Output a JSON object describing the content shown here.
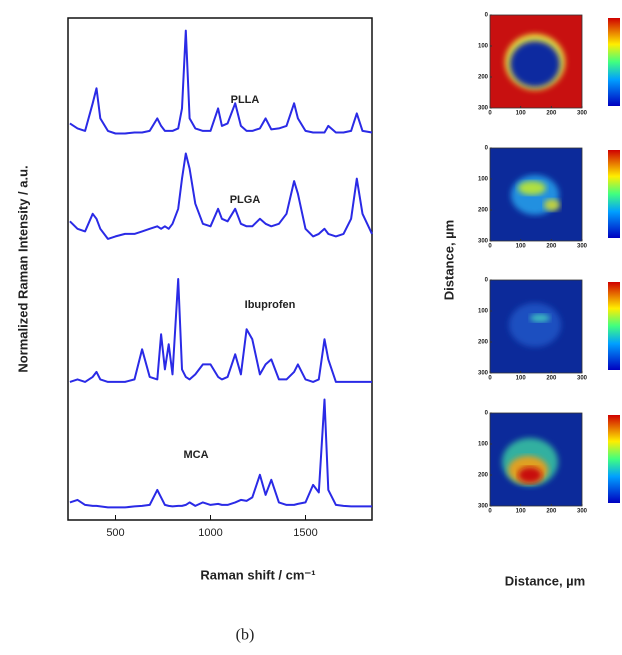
{
  "chart_data": [
    {
      "type": "line",
      "xlabel": "Raman shift / cm⁻¹",
      "ylabel": "Normalized Raman Intensity / a.u.",
      "caption": "(b)",
      "xlim": [
        250,
        1850
      ],
      "ylim": [
        0,
        10
      ],
      "xticks": [
        500,
        1000,
        1500
      ],
      "x": [
        260,
        300,
        340,
        380,
        400,
        420,
        460,
        500,
        550,
        600,
        640,
        680,
        720,
        740,
        760,
        780,
        800,
        830,
        850,
        870,
        890,
        920,
        960,
        1000,
        1040,
        1060,
        1090,
        1130,
        1160,
        1190,
        1220,
        1260,
        1290,
        1320,
        1360,
        1400,
        1440,
        1460,
        1500,
        1540,
        1570,
        1600,
        1620,
        1660,
        1700,
        1740,
        1770,
        1800,
        1850
      ],
      "series": [
        {
          "name": "PLLA",
          "color": "#2a2ae6",
          "values": [
            7.9,
            7.8,
            7.75,
            8.3,
            8.6,
            8.0,
            7.75,
            7.7,
            7.7,
            7.72,
            7.72,
            7.75,
            8.0,
            7.85,
            7.75,
            7.75,
            7.75,
            7.8,
            8.2,
            9.75,
            8.0,
            7.8,
            7.75,
            7.75,
            8.2,
            7.85,
            7.9,
            8.3,
            7.85,
            7.75,
            7.75,
            7.8,
            8.0,
            7.78,
            7.8,
            7.85,
            8.3,
            8.0,
            7.75,
            7.72,
            7.72,
            7.72,
            7.85,
            7.72,
            7.72,
            7.75,
            8.1,
            7.75,
            7.72
          ]
        },
        {
          "name": "PLGA",
          "color": "#2a2ae6",
          "values": [
            5.95,
            5.8,
            5.75,
            6.1,
            6.0,
            5.8,
            5.6,
            5.65,
            5.7,
            5.7,
            5.75,
            5.8,
            5.85,
            5.8,
            5.85,
            5.8,
            5.9,
            6.2,
            6.8,
            7.3,
            7.0,
            6.3,
            5.9,
            5.85,
            6.2,
            6.0,
            5.95,
            6.2,
            5.9,
            5.85,
            5.85,
            6.0,
            5.9,
            5.85,
            5.9,
            6.1,
            6.75,
            6.5,
            5.8,
            5.65,
            5.7,
            5.8,
            5.7,
            5.65,
            5.7,
            6.0,
            6.8,
            6.1,
            5.7
          ]
        },
        {
          "name": "Ibuprofen",
          "color": "#2a2ae6",
          "values": [
            2.75,
            2.8,
            2.75,
            2.85,
            2.95,
            2.8,
            2.75,
            2.75,
            2.75,
            2.8,
            3.4,
            2.85,
            2.8,
            3.7,
            3.0,
            3.5,
            2.9,
            4.8,
            3.0,
            2.85,
            2.8,
            2.9,
            3.1,
            3.1,
            2.85,
            2.8,
            2.85,
            3.3,
            2.9,
            3.8,
            3.6,
            2.9,
            3.1,
            3.2,
            2.8,
            2.8,
            2.95,
            3.1,
            2.8,
            2.75,
            2.8,
            3.6,
            3.2,
            2.75,
            2.75,
            2.75,
            2.75,
            2.75,
            2.75
          ]
        },
        {
          "name": "MCA",
          "color": "#2a2ae6",
          "values": [
            0.35,
            0.4,
            0.3,
            0.28,
            0.28,
            0.27,
            0.25,
            0.25,
            0.25,
            0.27,
            0.28,
            0.3,
            0.6,
            0.45,
            0.3,
            0.28,
            0.27,
            0.28,
            0.28,
            0.3,
            0.35,
            0.28,
            0.35,
            0.3,
            0.32,
            0.3,
            0.3,
            0.35,
            0.4,
            0.38,
            0.45,
            0.9,
            0.5,
            0.8,
            0.35,
            0.3,
            0.3,
            0.32,
            0.35,
            0.7,
            0.55,
            2.4,
            0.6,
            0.3,
            0.28,
            0.27,
            0.27,
            0.27,
            0.27
          ]
        }
      ]
    },
    {
      "type": "heatmap",
      "xlabel": "Distance, µm",
      "ylabel": "Distance, µm",
      "xlim": [
        0,
        300
      ],
      "ylim": [
        300,
        0
      ],
      "xticks": [
        0,
        100,
        200,
        300
      ],
      "yticks": [
        0,
        100,
        200,
        300
      ]
    }
  ]
}
